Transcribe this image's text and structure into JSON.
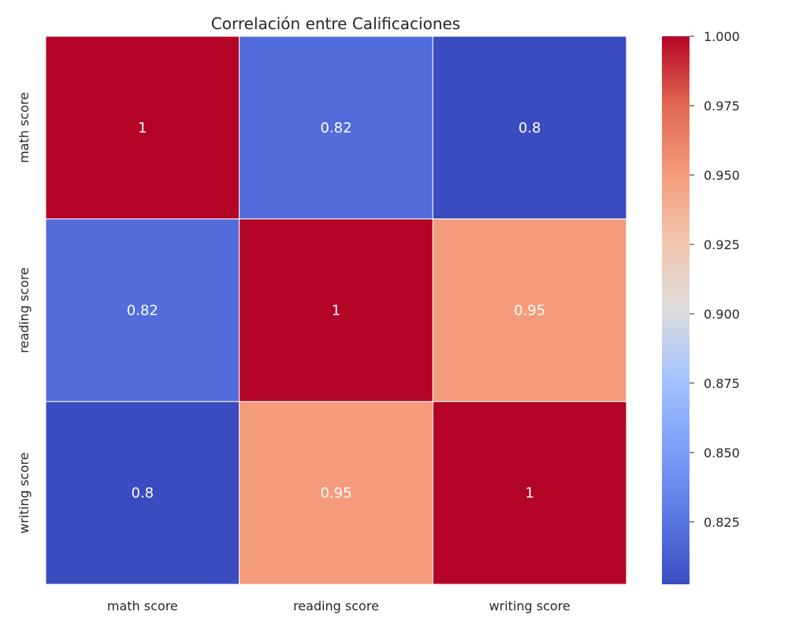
{
  "chart_data": {
    "type": "heatmap",
    "title": "Correlación entre Calificaciones",
    "xlabel": "",
    "ylabel": "",
    "x_categories": [
      "math score",
      "reading score",
      "writing score"
    ],
    "y_categories": [
      "math score",
      "reading score",
      "writing score"
    ],
    "values": [
      [
        1.0,
        0.82,
        0.8
      ],
      [
        0.82,
        1.0,
        0.95
      ],
      [
        0.8,
        0.95,
        1.0
      ]
    ],
    "annotations": [
      [
        "1",
        "0.82",
        "0.8"
      ],
      [
        "0.82",
        "1",
        "0.95"
      ],
      [
        "0.8",
        "0.95",
        "1"
      ]
    ],
    "colormap": "coolwarm",
    "colorbar": {
      "range": [
        0.8025,
        1.0
      ],
      "ticks": [
        0.825,
        0.85,
        0.875,
        0.9,
        0.925,
        0.95,
        0.975,
        1.0
      ],
      "tick_labels": [
        "0.825",
        "0.850",
        "0.875",
        "0.900",
        "0.925",
        "0.950",
        "0.975",
        "1.000"
      ]
    },
    "grid": false,
    "legend": "colorbar-right"
  }
}
